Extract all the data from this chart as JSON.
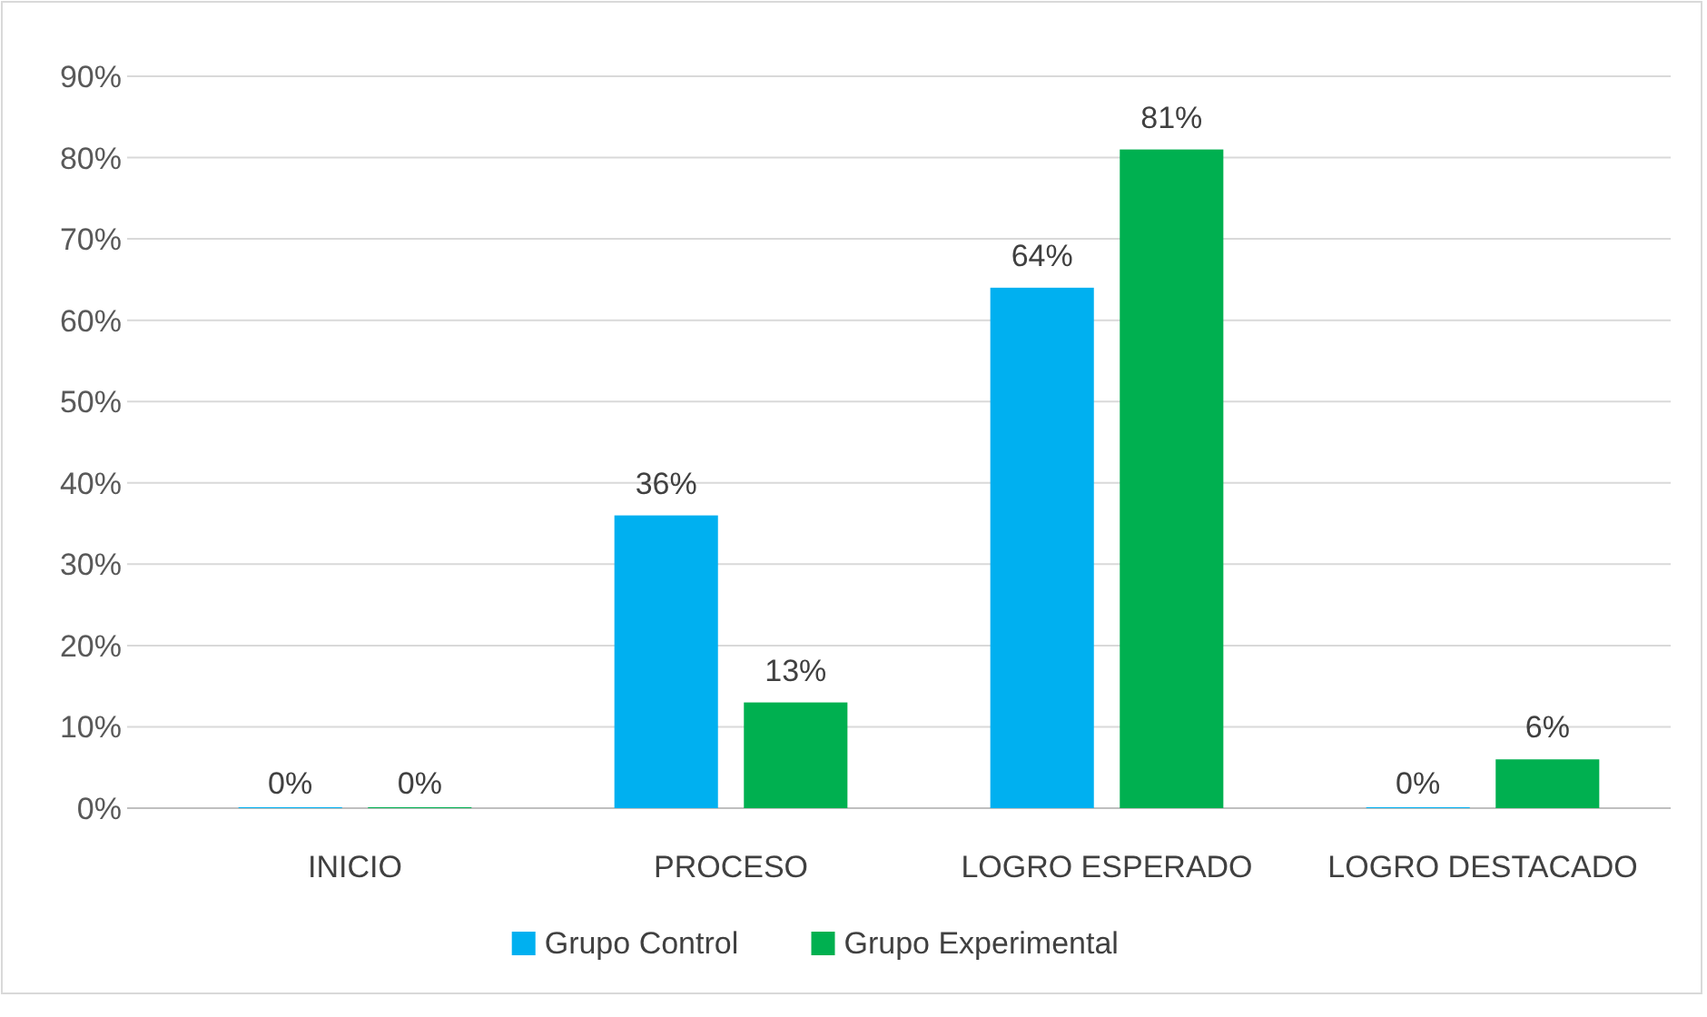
{
  "chart_data": {
    "type": "bar",
    "categories": [
      "INICIO",
      "PROCESO",
      "LOGRO ESPERADO",
      "LOGRO DESTACADO"
    ],
    "series": [
      {
        "name": "Grupo Control",
        "color": "#00b0f0",
        "values": [
          0,
          36,
          64,
          0
        ],
        "value_labels": [
          "0%",
          "36%",
          "64%",
          "0%"
        ]
      },
      {
        "name": "Grupo Experimental",
        "color": "#00b050",
        "values": [
          0,
          13,
          81,
          6
        ],
        "value_labels": [
          "0%",
          "13%",
          "81%",
          "6%"
        ]
      }
    ],
    "ylim": [
      0,
      90
    ],
    "yticks": [
      {
        "value": 0,
        "label": "0%"
      },
      {
        "value": 10,
        "label": "10%"
      },
      {
        "value": 20,
        "label": "20%"
      },
      {
        "value": 30,
        "label": "30%"
      },
      {
        "value": 40,
        "label": "40%"
      },
      {
        "value": 50,
        "label": "50%"
      },
      {
        "value": 60,
        "label": "60%"
      },
      {
        "value": 70,
        "label": "70%"
      },
      {
        "value": 80,
        "label": "80%"
      },
      {
        "value": 90,
        "label": "90%"
      }
    ],
    "grid": "y",
    "legend": "bottom"
  }
}
